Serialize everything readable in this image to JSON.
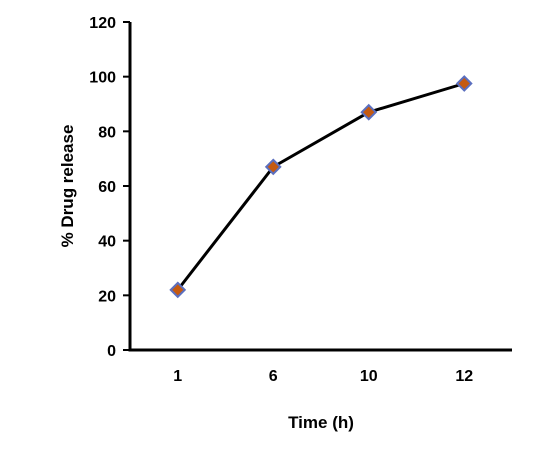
{
  "chart_data": {
    "type": "line",
    "title": "",
    "xlabel": "Time (h)",
    "ylabel": "% Drug release",
    "categories": [
      "1",
      "6",
      "10",
      "12"
    ],
    "series": [
      {
        "values": [
          22,
          67,
          87,
          97.5
        ]
      }
    ],
    "ylim": [
      0,
      120
    ],
    "yticks": [
      0,
      20,
      40,
      60,
      80,
      100,
      120
    ],
    "grid": false,
    "legend": "none",
    "colors": {
      "line": "#000000",
      "marker_fill": "#c55a11",
      "marker_stroke": "#5b6fbf",
      "axis": "#000000"
    }
  }
}
